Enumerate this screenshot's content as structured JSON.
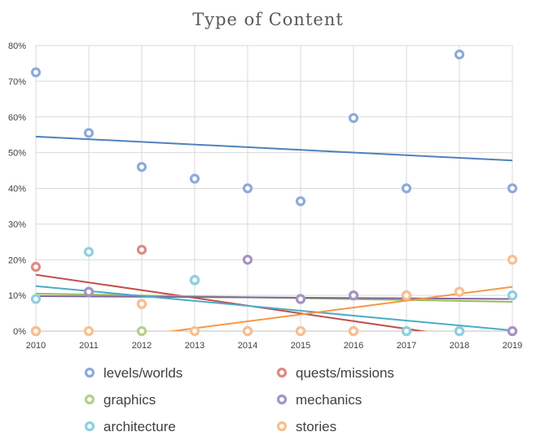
{
  "chart_data": {
    "type": "scatter",
    "title": "Type of Content",
    "xlabel": "",
    "ylabel": "",
    "x": [
      2010,
      2011,
      2012,
      2013,
      2014,
      2015,
      2016,
      2017,
      2018,
      2019
    ],
    "ylim": [
      0,
      80
    ],
    "yticks": [
      "0%",
      "10%",
      "20%",
      "30%",
      "40%",
      "50%",
      "60%",
      "70%",
      "80%"
    ],
    "legend_position": "bottom",
    "grid": true,
    "trendlines": true,
    "series": [
      {
        "name": "levels/worlds",
        "color": "#4f81bd",
        "marker": "#8eaadb",
        "values": [
          72.5,
          55.5,
          46,
          42.7,
          40,
          36.4,
          59.7,
          40,
          77.5,
          40
        ],
        "trend": [
          54.5,
          47.8
        ]
      },
      {
        "name": "quests/missions",
        "color": "#c0504d",
        "marker": "#dd8a86",
        "values": [
          18,
          11,
          22.8,
          14.3,
          0,
          9,
          0,
          10,
          11,
          0
        ],
        "trend": [
          15.8,
          -3.7
        ]
      },
      {
        "name": "graphics",
        "color": "#9bbb59",
        "marker": "#b6d08c",
        "values": [
          0,
          11,
          0,
          14.3,
          0,
          9,
          10,
          0,
          0,
          10
        ],
        "trend": [
          10.5,
          8.2
        ]
      },
      {
        "name": "mechanics",
        "color": "#8064a2",
        "marker": "#a594c4",
        "values": [
          0,
          11,
          7.6,
          14.3,
          20,
          9,
          10,
          10,
          0,
          0
        ],
        "trend": [
          9.8,
          9.0
        ]
      },
      {
        "name": "architecture",
        "color": "#4bacc6",
        "marker": "#8fd0e0",
        "values": [
          9,
          22.2,
          7.6,
          14.3,
          0,
          0,
          0,
          0,
          0,
          10
        ],
        "trend": [
          12.6,
          0.2
        ]
      },
      {
        "name": "stories",
        "color": "#f79646",
        "marker": "#f9bf8e",
        "values": [
          0,
          0,
          7.6,
          0,
          0,
          0,
          0,
          10,
          11,
          20
        ],
        "trend": [
          -5.0,
          12.4
        ]
      }
    ]
  }
}
